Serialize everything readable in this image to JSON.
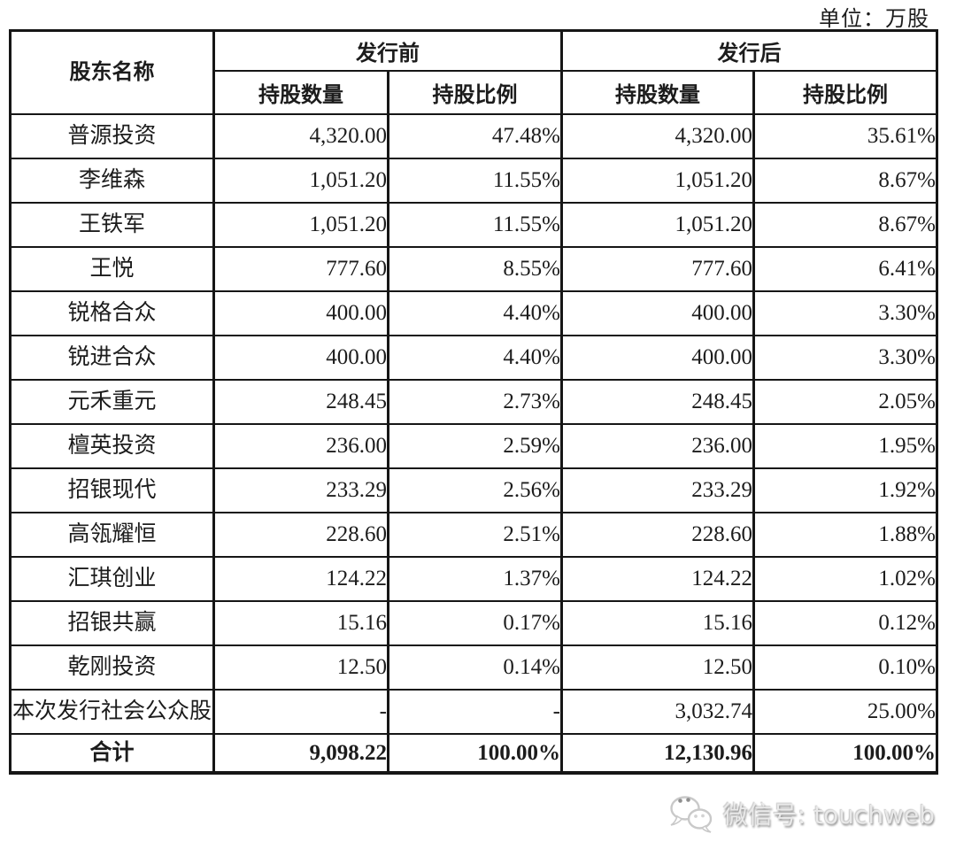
{
  "unit_label": "单位：万股",
  "table": {
    "headers": {
      "shareholder": "股东名称",
      "pre_issue": "发行前",
      "post_issue": "发行后",
      "quantity": "持股数量",
      "ratio": "持股比例"
    },
    "rows": [
      [
        "普源投资",
        "4,320.00",
        "47.48%",
        "4,320.00",
        "35.61%"
      ],
      [
        "李维森",
        "1,051.20",
        "11.55%",
        "1,051.20",
        "8.67%"
      ],
      [
        "王铁军",
        "1,051.20",
        "11.55%",
        "1,051.20",
        "8.67%"
      ],
      [
        "王悦",
        "777.60",
        "8.55%",
        "777.60",
        "6.41%"
      ],
      [
        "锐格合众",
        "400.00",
        "4.40%",
        "400.00",
        "3.30%"
      ],
      [
        "锐进合众",
        "400.00",
        "4.40%",
        "400.00",
        "3.30%"
      ],
      [
        "元禾重元",
        "248.45",
        "2.73%",
        "248.45",
        "2.05%"
      ],
      [
        "檀英投资",
        "236.00",
        "2.59%",
        "236.00",
        "1.95%"
      ],
      [
        "招银现代",
        "233.29",
        "2.56%",
        "233.29",
        "1.92%"
      ],
      [
        "高瓴耀恒",
        "228.60",
        "2.51%",
        "228.60",
        "1.88%"
      ],
      [
        "汇琪创业",
        "124.22",
        "1.37%",
        "124.22",
        "1.02%"
      ],
      [
        "招银共赢",
        "15.16",
        "0.17%",
        "15.16",
        "0.12%"
      ],
      [
        "乾刚投资",
        "12.50",
        "0.14%",
        "12.50",
        "0.10%"
      ],
      [
        "本次发行社会公众股",
        "-",
        "-",
        "3,032.74",
        "25.00%"
      ]
    ],
    "total_row": [
      "合计",
      "9,098.22",
      "100.00%",
      "12,130.96",
      "100.00%"
    ]
  },
  "watermark": {
    "icon": "wechat-icon",
    "label": "微信号: touchweb"
  },
  "colors": {
    "border": "#161616",
    "text": "#1c1c1c",
    "watermark_gray": "#8d8d8d"
  }
}
